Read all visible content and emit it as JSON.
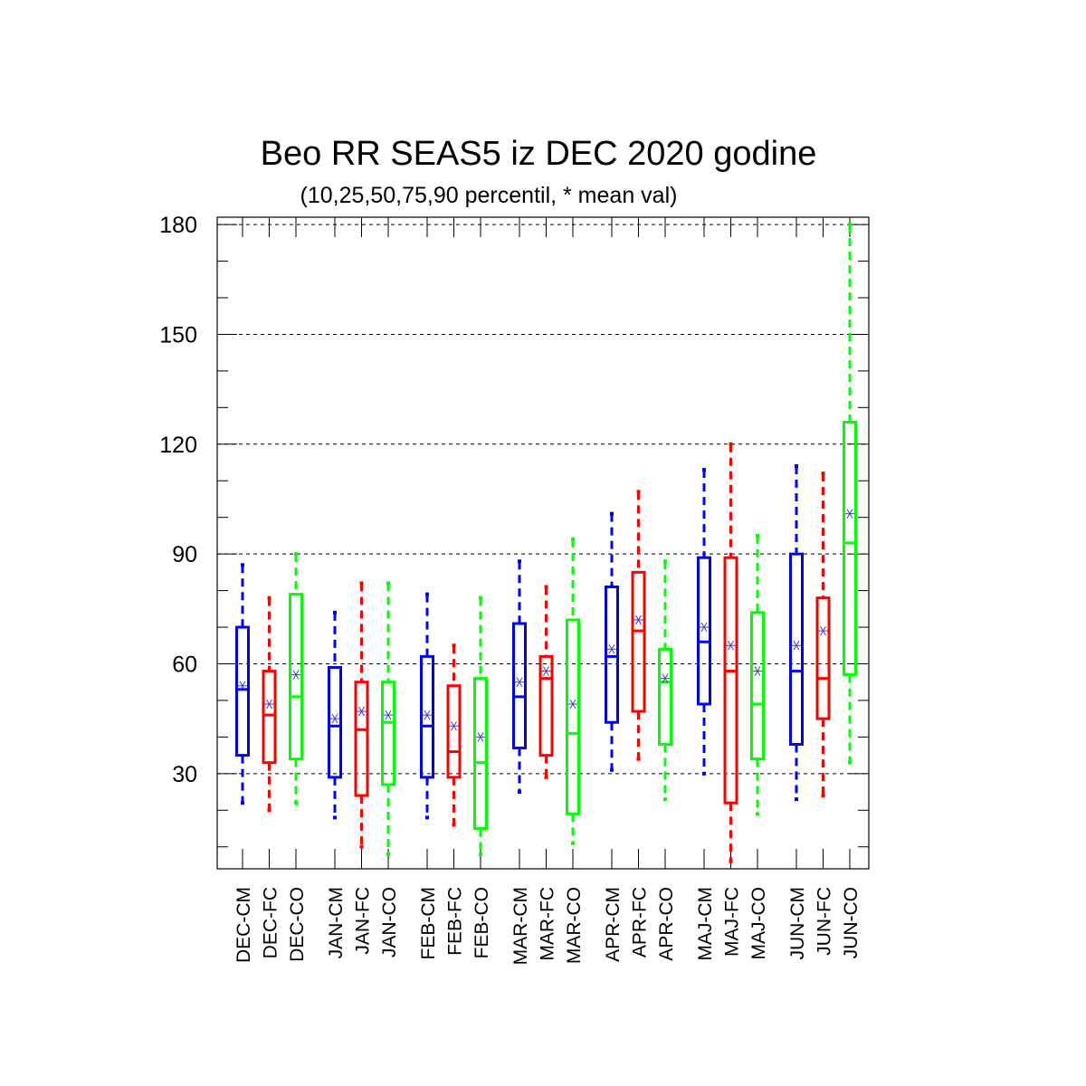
{
  "chart_data": {
    "type": "boxplot",
    "title": "Beo RR SEAS5 iz DEC 2020 godine",
    "subtitle": "(10,25,50,75,90 percentil, * mean val)",
    "ylim": [
      4,
      182
    ],
    "yticks": [
      30,
      60,
      90,
      120,
      150,
      180
    ],
    "grid": "horizontal dashed at major ticks",
    "colors": {
      "CM": "#0000ff",
      "FC": "#ff0000",
      "CO": "#00ff00",
      "mean_marker": "#4040cc"
    },
    "groups": [
      {
        "boxes": [
          {
            "label": "DEC-CM",
            "kind": "CM",
            "p10": 22,
            "p25": 35,
            "p50": 53,
            "p75": 70,
            "p90": 87,
            "mean": 54
          },
          {
            "label": "DEC-FC",
            "kind": "FC",
            "p10": 20,
            "p25": 33,
            "p50": 46,
            "p75": 58,
            "p90": 78,
            "mean": 49
          },
          {
            "label": "DEC-CO",
            "kind": "CO",
            "p10": 22,
            "p25": 34,
            "p50": 51,
            "p75": 79,
            "p90": 90,
            "mean": 57
          }
        ]
      },
      {
        "boxes": [
          {
            "label": "JAN-CM",
            "kind": "CM",
            "p10": 18,
            "p25": 29,
            "p50": 43,
            "p75": 59,
            "p90": 74,
            "mean": 45
          },
          {
            "label": "JAN-FC",
            "kind": "FC",
            "p10": 10,
            "p25": 24,
            "p50": 42,
            "p75": 55,
            "p90": 82,
            "mean": 47
          },
          {
            "label": "JAN-CO",
            "kind": "CO",
            "p10": 8,
            "p25": 27,
            "p50": 44,
            "p75": 55,
            "p90": 82,
            "mean": 46
          }
        ]
      },
      {
        "boxes": [
          {
            "label": "FEB-CM",
            "kind": "CM",
            "p10": 18,
            "p25": 29,
            "p50": 43,
            "p75": 62,
            "p90": 79,
            "mean": 46
          },
          {
            "label": "FEB-FC",
            "kind": "FC",
            "p10": 16,
            "p25": 29,
            "p50": 36,
            "p75": 54,
            "p90": 65,
            "mean": 43
          },
          {
            "label": "FEB-CO",
            "kind": "CO",
            "p10": 8,
            "p25": 15,
            "p50": 33,
            "p75": 56,
            "p90": 78,
            "mean": 40
          }
        ]
      },
      {
        "boxes": [
          {
            "label": "MAR-CM",
            "kind": "CM",
            "p10": 25,
            "p25": 37,
            "p50": 51,
            "p75": 71,
            "p90": 88,
            "mean": 55
          },
          {
            "label": "MAR-FC",
            "kind": "FC",
            "p10": 29,
            "p25": 35,
            "p50": 56,
            "p75": 62,
            "p90": 81,
            "mean": 58
          },
          {
            "label": "MAR-CO",
            "kind": "CO",
            "p10": 11,
            "p25": 19,
            "p50": 41,
            "p75": 72,
            "p90": 94,
            "mean": 49
          }
        ]
      },
      {
        "boxes": [
          {
            "label": "APR-CM",
            "kind": "CM",
            "p10": 31,
            "p25": 44,
            "p50": 62,
            "p75": 81,
            "p90": 101,
            "mean": 64
          },
          {
            "label": "APR-FC",
            "kind": "FC",
            "p10": 34,
            "p25": 47,
            "p50": 69,
            "p75": 85,
            "p90": 107,
            "mean": 72
          },
          {
            "label": "APR-CO",
            "kind": "CO",
            "p10": 23,
            "p25": 38,
            "p50": 55,
            "p75": 64,
            "p90": 88,
            "mean": 56
          }
        ]
      },
      {
        "boxes": [
          {
            "label": "MAJ-CM",
            "kind": "CM",
            "p10": 30,
            "p25": 49,
            "p50": 66,
            "p75": 89,
            "p90": 113,
            "mean": 70
          },
          {
            "label": "MAJ-FC",
            "kind": "FC",
            "p10": 6,
            "p25": 22,
            "p50": 58,
            "p75": 89,
            "p90": 120,
            "mean": 65
          },
          {
            "label": "MAJ-CO",
            "kind": "CO",
            "p10": 19,
            "p25": 34,
            "p50": 49,
            "p75": 74,
            "p90": 95,
            "mean": 58
          }
        ]
      },
      {
        "boxes": [
          {
            "label": "JUN-CM",
            "kind": "CM",
            "p10": 23,
            "p25": 38,
            "p50": 58,
            "p75": 90,
            "p90": 114,
            "mean": 65
          },
          {
            "label": "JUN-FC",
            "kind": "FC",
            "p10": 24,
            "p25": 45,
            "p50": 56,
            "p75": 78,
            "p90": 112,
            "mean": 69
          },
          {
            "label": "JUN-CO",
            "kind": "CO",
            "p10": 33,
            "p25": 57,
            "p50": 93,
            "p75": 126,
            "p90": 180,
            "mean": 101
          }
        ]
      }
    ]
  }
}
